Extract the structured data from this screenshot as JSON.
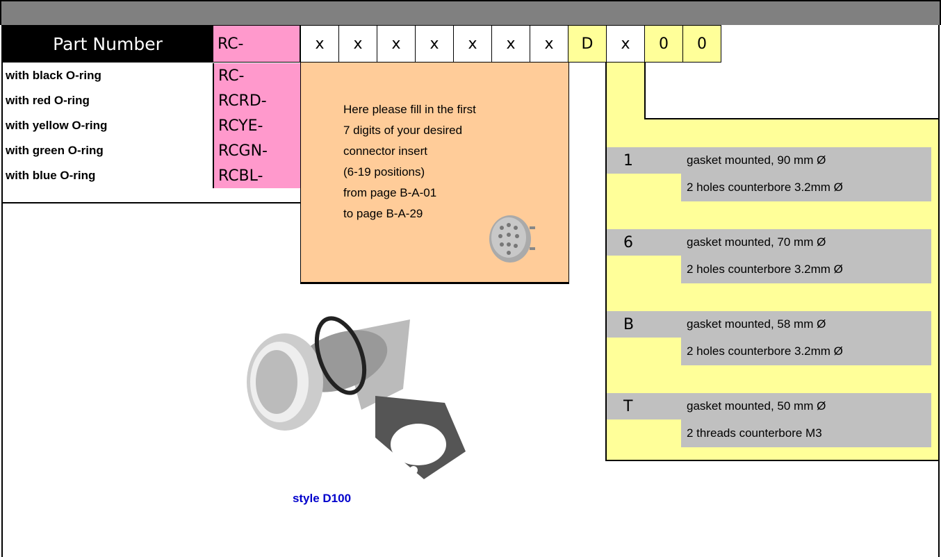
{
  "part_number": {
    "label": "Part Number",
    "prefix": "RC-",
    "digits": [
      "x",
      "x",
      "x",
      "x",
      "x",
      "x",
      "x",
      "D",
      "x",
      "0",
      "0"
    ]
  },
  "oring_options": [
    {
      "label": "with black O-ring",
      "code": "RC-"
    },
    {
      "label": "with red O-ring",
      "code": "RCRD-"
    },
    {
      "label": "with yellow O-ring",
      "code": "RCYE-"
    },
    {
      "label": "with green O-ring",
      "code": "RCGN-"
    },
    {
      "label": "with blue O-ring",
      "code": "RCBL-"
    }
  ],
  "insert_note": [
    "Here please fill in the first",
    "7 digits of your desired",
    "connector insert",
    "(6-19 positions)",
    "from page B-A-01",
    "to page B-A-29"
  ],
  "mounting_options": [
    {
      "code": "1",
      "lines": [
        "gasket mounted, 90 mm Ø",
        "2 holes counterbore 3.2mm Ø"
      ]
    },
    {
      "code": "6",
      "lines": [
        "gasket mounted, 70 mm Ø",
        "2 holes counterbore 3.2mm Ø"
      ]
    },
    {
      "code": "B",
      "lines": [
        "gasket mounted, 58 mm Ø",
        "2 holes counterbore 3.2mm Ø"
      ]
    },
    {
      "code": "T",
      "lines": [
        "gasket mounted, 50 mm Ø",
        "2 threads counterbore M3"
      ]
    }
  ],
  "image_caption": "style D100"
}
